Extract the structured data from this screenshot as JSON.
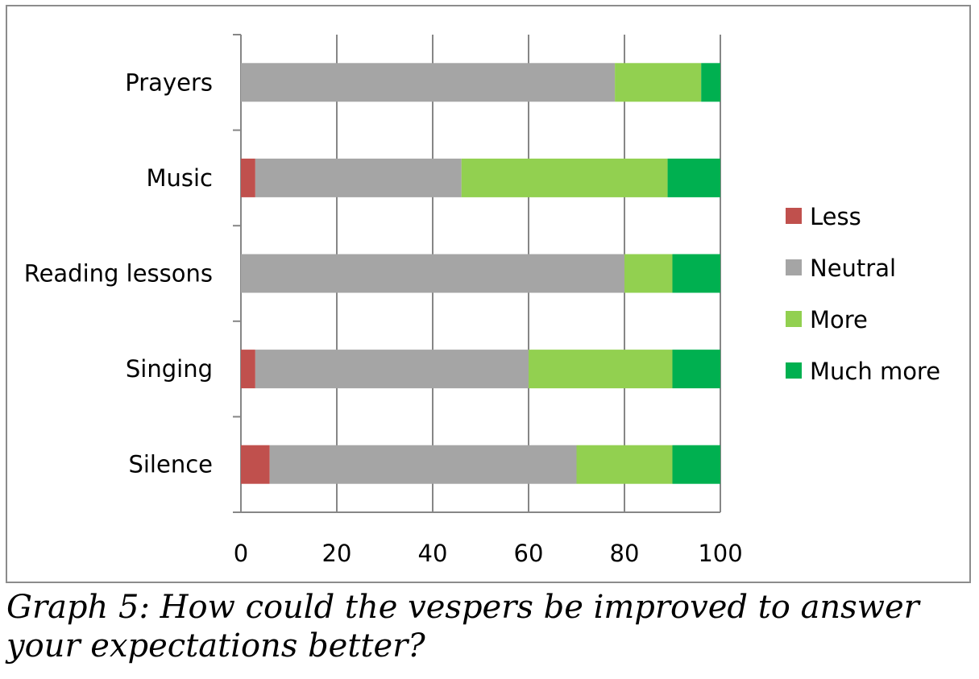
{
  "chart_data": {
    "type": "bar",
    "orientation": "horizontal-stacked",
    "categories": [
      "Prayers",
      "Music",
      "Reading lessons",
      "Singing",
      "Silence"
    ],
    "series": [
      {
        "name": "Less",
        "color": "#c0504d",
        "values": [
          0,
          3,
          0,
          3,
          6
        ]
      },
      {
        "name": "Neutral",
        "color": "#a5a5a5",
        "values": [
          78,
          43,
          80,
          57,
          64
        ]
      },
      {
        "name": "More",
        "color": "#92d050",
        "values": [
          18,
          43,
          10,
          30,
          20
        ]
      },
      {
        "name": "Much more",
        "color": "#00b050",
        "values": [
          4,
          11,
          10,
          10,
          10
        ]
      }
    ],
    "xlim": [
      0,
      100
    ],
    "xticks": [
      "0",
      "20",
      "40",
      "60",
      "80",
      "100"
    ],
    "grid": true,
    "legend": "right",
    "title": ""
  },
  "caption": [
    "Graph 5: How could the vespers be improved to answer",
    "your expectations better?"
  ]
}
